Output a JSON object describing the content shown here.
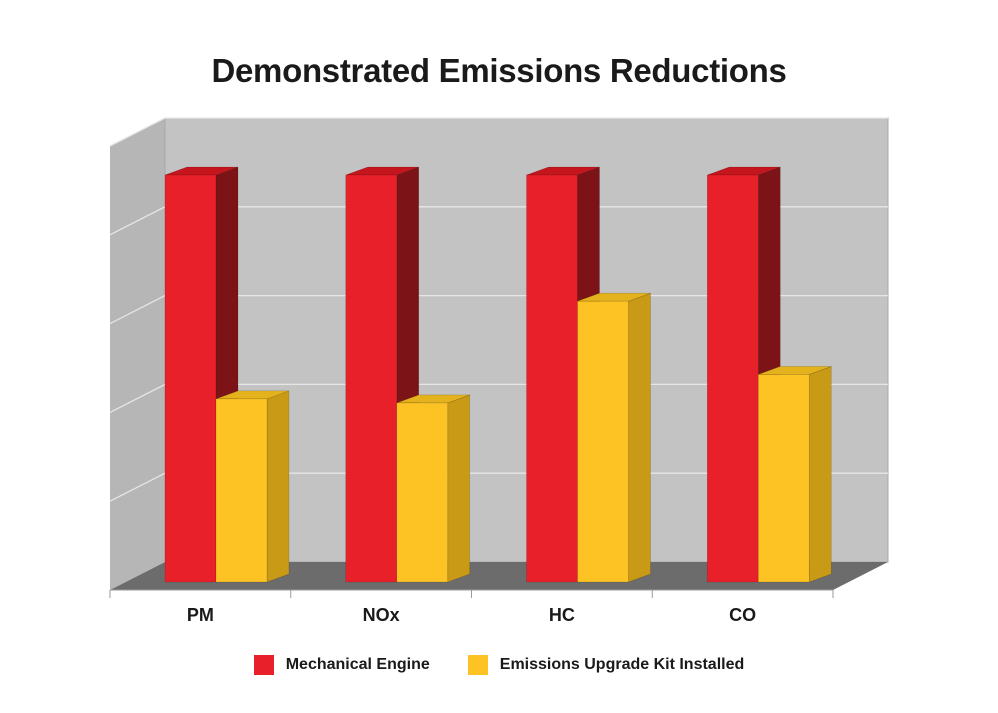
{
  "colors": {
    "series_1_front": "#e8202a",
    "series_1_side": "#7c1417",
    "series_1_top": "#c5161d",
    "series_2_front": "#fdc324",
    "series_2_side": "#c99a16",
    "series_2_top": "#e3b21c",
    "back_wall": "#c3c3c3",
    "side_wall": "#b6b6b6",
    "floor": "#6c6c6c",
    "grid": "#e6e6e6"
  },
  "chart_data": {
    "type": "bar",
    "style": "3d-clustered",
    "title": "Demonstrated Emissions Reductions",
    "categories": [
      "PM",
      "NOx",
      "HC",
      "CO"
    ],
    "series": [
      {
        "name": "Mechanical Engine",
        "values": [
          100,
          100,
          100,
          100
        ]
      },
      {
        "name": "Emissions Upgrade Kit Installed",
        "values": [
          45,
          44,
          69,
          51
        ]
      }
    ],
    "ylim": [
      0,
      100
    ],
    "grid": true,
    "y_tick_labels_shown": false,
    "legend_position": "bottom"
  }
}
